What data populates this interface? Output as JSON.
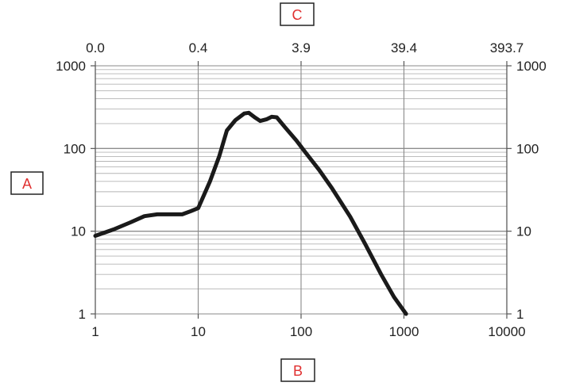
{
  "chart_data": {
    "type": "line",
    "x_scale": "log",
    "y_scale": "log",
    "xlim": [
      1,
      10000
    ],
    "ylim": [
      1,
      1000
    ],
    "grid": true,
    "x_ticks": [
      "1",
      "10",
      "100",
      "1000",
      "10000"
    ],
    "x_tick_values": [
      1,
      10,
      100,
      1000,
      10000
    ],
    "y_ticks": [
      "1",
      "10",
      "100",
      "1000"
    ],
    "y_tick_values": [
      1,
      10,
      100,
      1000
    ],
    "top_ticks": [
      "0.0",
      "0.4",
      "3.9",
      "39.4",
      "393.7"
    ],
    "labels": {
      "left": "A",
      "bottom": "B",
      "top": "C"
    },
    "series": [
      {
        "color": "#1a1a1a",
        "points": [
          [
            1,
            8.8
          ],
          [
            1.5,
            10.5
          ],
          [
            2.2,
            12.8
          ],
          [
            3.0,
            15.2
          ],
          [
            4.0,
            16.0
          ],
          [
            5.5,
            16.0
          ],
          [
            7.0,
            16.0
          ],
          [
            8.5,
            17.5
          ],
          [
            10,
            19
          ],
          [
            13,
            40
          ],
          [
            16,
            80
          ],
          [
            19,
            165
          ],
          [
            23,
            220
          ],
          [
            28,
            265
          ],
          [
            31,
            270
          ],
          [
            36,
            235
          ],
          [
            40,
            215
          ],
          [
            46,
            225
          ],
          [
            52,
            242
          ],
          [
            58,
            238
          ],
          [
            70,
            180
          ],
          [
            90,
            125
          ],
          [
            110,
            90
          ],
          [
            150,
            55
          ],
          [
            200,
            33
          ],
          [
            300,
            15
          ],
          [
            420,
            7
          ],
          [
            600,
            3
          ],
          [
            800,
            1.6
          ],
          [
            1050,
            1
          ]
        ]
      }
    ]
  }
}
